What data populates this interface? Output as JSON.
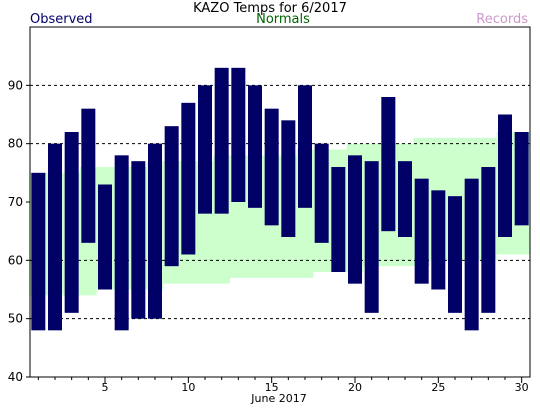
{
  "title": "KAZO Temps for 6/2017",
  "legend": {
    "observed": "Observed",
    "normals": "Normals",
    "records": "Records"
  },
  "colors": {
    "observed": "#000066",
    "normals_text": "#006600",
    "normals_fill": "#ccffcc",
    "records": "#cc99cc",
    "grid": "#000000"
  },
  "chart_data": {
    "type": "bar",
    "title": "KAZO Temps for 6/2017",
    "xlabel": "June 2017",
    "ylabel": "",
    "ylim": [
      40,
      100
    ],
    "xlim": [
      0.5,
      30.5
    ],
    "y_ticks": [
      40,
      50,
      60,
      70,
      80,
      90
    ],
    "grid_y": [
      50,
      60,
      80,
      90
    ],
    "x_ticks": [
      5,
      10,
      15,
      20,
      25,
      30
    ],
    "days": [
      1,
      2,
      3,
      4,
      5,
      6,
      7,
      8,
      9,
      10,
      11,
      12,
      13,
      14,
      15,
      16,
      17,
      18,
      19,
      20,
      21,
      22,
      23,
      24,
      25,
      26,
      27,
      28,
      29,
      30
    ],
    "series": [
      {
        "name": "Observed",
        "high": [
          75,
          80,
          82,
          86,
          73,
          78,
          77,
          80,
          83,
          87,
          90,
          93,
          93,
          90,
          86,
          84,
          90,
          80,
          76,
          78,
          77,
          88,
          77,
          74,
          72,
          71,
          74,
          76,
          85,
          82
        ],
        "low": [
          48,
          48,
          51,
          63,
          55,
          48,
          50,
          50,
          59,
          61,
          68,
          68,
          70,
          69,
          66,
          64,
          69,
          63,
          58,
          56,
          51,
          65,
          64,
          56,
          55,
          51,
          48,
          51,
          64,
          66
        ]
      },
      {
        "name": "Normals",
        "high": [
          75,
          75,
          75,
          76,
          76,
          76,
          76,
          77,
          77,
          77,
          77,
          78,
          78,
          78,
          78,
          78,
          79,
          79,
          79,
          80,
          80,
          80,
          80,
          81,
          81,
          81,
          81,
          81,
          82,
          82
        ],
        "low": [
          54,
          54,
          54,
          54,
          55,
          55,
          55,
          55,
          56,
          56,
          56,
          56,
          57,
          57,
          57,
          57,
          57,
          58,
          58,
          58,
          59,
          59,
          59,
          59,
          60,
          60,
          60,
          60,
          61,
          61
        ]
      }
    ]
  }
}
